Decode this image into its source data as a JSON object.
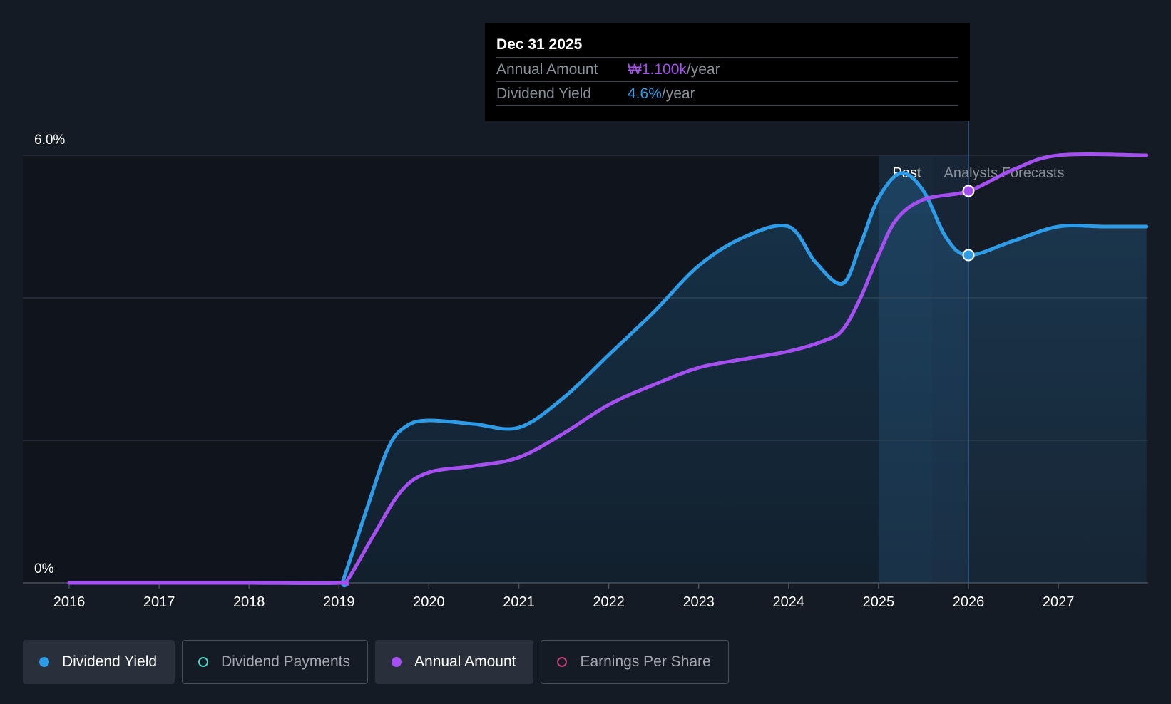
{
  "tooltip": {
    "date": "Dec 31 2025",
    "rows": [
      {
        "label": "Annual Amount",
        "value": "₩1.100k",
        "unit": "/year",
        "color": "#a54ff0"
      },
      {
        "label": "Dividend Yield",
        "value": "4.6%",
        "unit": "/year",
        "color": "#2d9be6"
      }
    ]
  },
  "legend": [
    {
      "label": "Dividend Yield",
      "color": "#2d9be6",
      "active": true
    },
    {
      "label": "Dividend Payments",
      "color": "#4fd1c5",
      "active": false
    },
    {
      "label": "Annual Amount",
      "color": "#a54ff0",
      "active": true
    },
    {
      "label": "Earnings Per Share",
      "color": "#c2407a",
      "active": false
    }
  ],
  "chart_data": {
    "type": "line",
    "title": "",
    "xlabel": "",
    "ylabel": "",
    "ylim": [
      0,
      6.0
    ],
    "xlim": [
      2015.5,
      2027.98
    ],
    "y_tick_labels": [
      "0%",
      "6.0%"
    ],
    "x_tick_labels": [
      "2016",
      "2017",
      "2018",
      "2019",
      "2020",
      "2021",
      "2022",
      "2023",
      "2024",
      "2025",
      "2026",
      "2027"
    ],
    "x_ticks": [
      2016,
      2017,
      2018,
      2019,
      2020,
      2021,
      2022,
      2023,
      2024,
      2025,
      2026,
      2027
    ],
    "past_label": "Past",
    "forecast_label": "Analysts Forecasts",
    "past_boundary": 2025.6,
    "highlight_start": 2025.0,
    "cursor_x": 2026.0,
    "series": [
      {
        "name": "Dividend Yield",
        "color": "#2d9be6",
        "area": true,
        "points": [
          [
            2016,
            0
          ],
          [
            2017,
            0
          ],
          [
            2018,
            0
          ],
          [
            2019,
            0
          ],
          [
            2019.05,
            0.05
          ],
          [
            2019.3,
            1.0
          ],
          [
            2019.55,
            1.9
          ],
          [
            2019.75,
            2.2
          ],
          [
            2020,
            2.28
          ],
          [
            2020.5,
            2.23
          ],
          [
            2021,
            2.18
          ],
          [
            2021.5,
            2.6
          ],
          [
            2022,
            3.2
          ],
          [
            2022.5,
            3.8
          ],
          [
            2023,
            4.45
          ],
          [
            2023.5,
            4.85
          ],
          [
            2024,
            5.0
          ],
          [
            2024.3,
            4.5
          ],
          [
            2024.6,
            4.2
          ],
          [
            2024.8,
            4.75
          ],
          [
            2025,
            5.4
          ],
          [
            2025.25,
            5.75
          ],
          [
            2025.5,
            5.5
          ],
          [
            2025.75,
            4.85
          ],
          [
            2026,
            4.6
          ],
          [
            2026.5,
            4.8
          ],
          [
            2027,
            5.0
          ],
          [
            2027.5,
            5.0
          ],
          [
            2027.98,
            5.0
          ]
        ]
      },
      {
        "name": "Annual Amount",
        "color": "#a54ff0",
        "area": false,
        "points": [
          [
            2016,
            0
          ],
          [
            2017,
            0
          ],
          [
            2018,
            0
          ],
          [
            2019,
            0
          ],
          [
            2019.1,
            0.05
          ],
          [
            2019.4,
            0.7
          ],
          [
            2019.7,
            1.3
          ],
          [
            2020,
            1.55
          ],
          [
            2020.5,
            1.64
          ],
          [
            2021,
            1.76
          ],
          [
            2021.5,
            2.1
          ],
          [
            2022,
            2.5
          ],
          [
            2022.5,
            2.78
          ],
          [
            2023,
            3.02
          ],
          [
            2023.5,
            3.14
          ],
          [
            2024,
            3.25
          ],
          [
            2024.4,
            3.4
          ],
          [
            2024.6,
            3.55
          ],
          [
            2024.8,
            4.0
          ],
          [
            2025,
            4.6
          ],
          [
            2025.2,
            5.1
          ],
          [
            2025.5,
            5.38
          ],
          [
            2026,
            5.5
          ],
          [
            2026.5,
            5.8
          ],
          [
            2027,
            6.0
          ],
          [
            2027.98,
            6.0
          ]
        ]
      }
    ],
    "markers": [
      {
        "series": "Annual Amount",
        "x": 2026.0,
        "y": 5.5
      },
      {
        "series": "Dividend Yield",
        "x": 2026.0,
        "y": 4.6
      }
    ]
  }
}
